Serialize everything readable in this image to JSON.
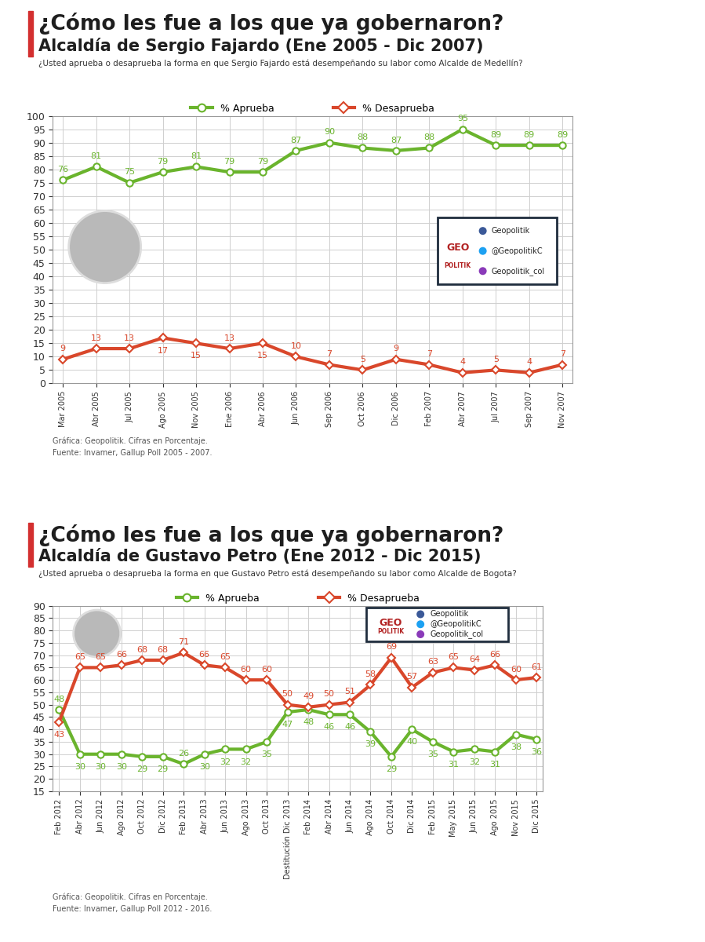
{
  "chart_data": [
    {
      "type": "line",
      "title": "¿Cómo les fue a los que ya gobernaron?",
      "subtitle": "Alcaldía de Sergio Fajardo (Ene 2005 - Dic 2007)",
      "question": "¿Usted aprueba o desaprueba la forma en que Sergio Fajardo está desempeñando su labor como Alcalde de Medellín?",
      "categories": [
        "Mar 2005",
        "Abr 2005",
        "Jul 2005",
        "Ago 2005",
        "Nov 2005",
        "Ene 2006",
        "Abr 2006",
        "Jun 2006",
        "Sep 2006",
        "Oct 2006",
        "Dic 2006",
        "Feb 2007",
        "Abr 2007",
        "Jul 2007",
        "Sep 2007",
        "Nov 2007"
      ],
      "series": [
        {
          "name": "% Aprueba",
          "color": "#6ab42d",
          "marker": "circle",
          "values": [
            76,
            81,
            75,
            79,
            81,
            79,
            79,
            87,
            90,
            88,
            87,
            88,
            95,
            89,
            89,
            89
          ]
        },
        {
          "name": "% Desaprueba",
          "color": "#d9472b",
          "marker": "diamond",
          "values": [
            9,
            13,
            13,
            17,
            15,
            13,
            15,
            10,
            7,
            5,
            9,
            7,
            4,
            5,
            4,
            7
          ]
        }
      ],
      "ylim": [
        0,
        100
      ],
      "yticks": [
        0,
        5,
        10,
        15,
        20,
        25,
        30,
        35,
        40,
        45,
        50,
        55,
        60,
        65,
        70,
        75,
        80,
        85,
        90,
        95,
        100
      ],
      "grid": true,
      "legend": "upper center",
      "data_labels": true,
      "notes": [
        "Gráfica: Geopolitik. Cifras en Porcentaje.",
        "Fuente: Invamer, Gallup Poll 2005 - 2007."
      ],
      "logo_text": [
        "GEO",
        "POLITIK"
      ],
      "social": [
        "Geopolitik",
        "@GeopolitikC",
        "Geopolitik_col"
      ]
    },
    {
      "type": "line",
      "title": "¿Cómo les fue a los que ya gobernaron?",
      "subtitle": "Alcaldía de Gustavo Petro (Ene 2012 - Dic 2015)",
      "question": "¿Usted aprueba o desaprueba la forma en que Gustavo Petro está desempeñando su labor como Alcalde de Bogota?",
      "categories": [
        "Feb 2012",
        "Abr 2012",
        "Jun 2012",
        "Ago 2012",
        "Oct 2012",
        "Dic 2012",
        "Feb 2013",
        "Abr 2013",
        "Jun 2013",
        "Ago 2013",
        "Oct 2013",
        "Destitución Dic 2013",
        "Feb 2014",
        "Abr 2014",
        "Jun 2014",
        "Ago 2014",
        "Oct 2014",
        "Dic 2014",
        "Feb 2015",
        "May 2015",
        "Jun 2015",
        "Ago 2015",
        "Nov 2015",
        "Dic 2015"
      ],
      "series": [
        {
          "name": "% Aprueba",
          "color": "#6ab42d",
          "marker": "circle",
          "values": [
            48,
            30,
            30,
            30,
            29,
            29,
            26,
            30,
            32,
            32,
            35,
            47,
            48,
            46,
            46,
            39,
            29,
            40,
            35,
            31,
            32,
            31,
            38,
            36
          ]
        },
        {
          "name": "% Desaprueba",
          "color": "#d9472b",
          "marker": "diamond",
          "values": [
            43,
            65,
            65,
            66,
            68,
            68,
            71,
            66,
            65,
            60,
            60,
            50,
            49,
            50,
            51,
            58,
            69,
            57,
            63,
            65,
            64,
            66,
            60,
            61
          ]
        }
      ],
      "ylim": [
        15,
        90
      ],
      "yticks": [
        15,
        20,
        25,
        30,
        35,
        40,
        45,
        50,
        55,
        60,
        65,
        70,
        75,
        80,
        85,
        90
      ],
      "grid": true,
      "legend": "upper center",
      "data_labels": true,
      "notes": [
        "Gráfica: Geopolitik. Cifras en Porcentaje.",
        "Fuente: Invamer, Gallup Poll 2012 - 2016."
      ],
      "logo_text": [
        "GEO",
        "POLITIK"
      ],
      "social": [
        "Geopolitik",
        "@GeopolitikC",
        "Geopolitik_col"
      ]
    }
  ]
}
